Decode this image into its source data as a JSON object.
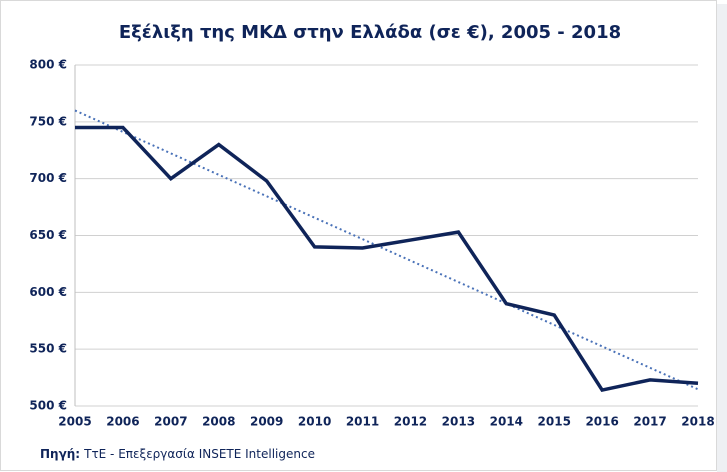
{
  "chart_data": {
    "type": "line",
    "title": "Εξέλιξη της ΜΚΔ στην Ελλάδα (σε €), 2005 - 2018",
    "categories": [
      "2005",
      "2006",
      "2007",
      "2008",
      "2009",
      "2010",
      "2011",
      "2012",
      "2013",
      "2014",
      "2015",
      "2016",
      "2017",
      "2018"
    ],
    "series": [
      {
        "color": "#0f2459",
        "values": [
          745,
          745,
          700,
          730,
          698,
          640,
          639,
          646,
          653,
          590,
          580,
          514,
          523,
          520
        ]
      }
    ],
    "trendline": {
      "type": "linear",
      "color": "#4a72b8",
      "style": "dotted"
    },
    "ylim": [
      500,
      800
    ],
    "yticks": [
      {
        "value": 500,
        "label": "500 €"
      },
      {
        "value": 550,
        "label": "550 €"
      },
      {
        "value": 600,
        "label": "600 €"
      },
      {
        "value": 650,
        "label": "650 €"
      },
      {
        "value": 700,
        "label": "700 €"
      },
      {
        "value": 750,
        "label": "750 €"
      },
      {
        "value": 800,
        "label": "800 €"
      }
    ],
    "grid": true,
    "source_label": "Πηγή:",
    "source_text": "ΤτΕ - Επεξεργασία INSETE Intelligence"
  }
}
